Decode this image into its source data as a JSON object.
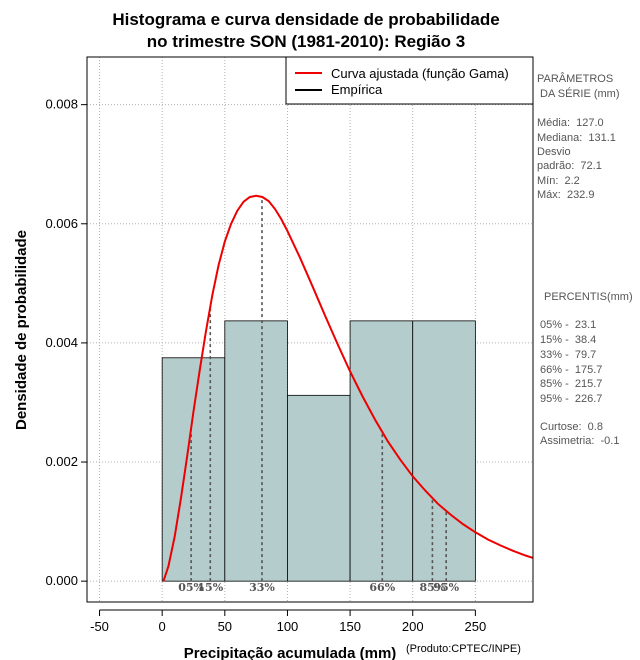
{
  "chart_data": {
    "type": "histogram",
    "title_lines": [
      "Histograma e curva densidade de probabilidade",
      "no trimestre SON (1981-2010): Região 3"
    ],
    "xlabel": "Precipitação acumulada (mm)",
    "ylabel": "Densidade de probabilidade",
    "xlim": [
      -60,
      296
    ],
    "ylim": [
      -0.00035,
      0.0088
    ],
    "x_ticks": [
      -50,
      0,
      50,
      100,
      150,
      200,
      250
    ],
    "y_ticks": [
      0.0,
      0.002,
      0.004,
      0.006,
      0.008
    ],
    "y_tick_labels": [
      "0.000",
      "0.002",
      "0.004",
      "0.006",
      "0.008"
    ],
    "grid": true,
    "bins": [
      {
        "start": 0,
        "end": 50,
        "density": 0.00375
      },
      {
        "start": 50,
        "end": 100,
        "density": 0.00437
      },
      {
        "start": 100,
        "end": 150,
        "density": 0.00312
      },
      {
        "start": 150,
        "end": 200,
        "density": 0.00437
      },
      {
        "start": 200,
        "end": 250,
        "density": 0.00437
      }
    ],
    "fitted_curve": {
      "name": "Curva ajustada (função Gama)",
      "color": "#ee0000",
      "points": [
        [
          1,
          0.0
        ],
        [
          5,
          0.00025
        ],
        [
          10,
          0.00075
        ],
        [
          15,
          0.0014
        ],
        [
          20,
          0.0021
        ],
        [
          25,
          0.00285
        ],
        [
          30,
          0.00355
        ],
        [
          35,
          0.0042
        ],
        [
          40,
          0.0048
        ],
        [
          45,
          0.0053
        ],
        [
          50,
          0.0057
        ],
        [
          55,
          0.006
        ],
        [
          60,
          0.00622
        ],
        [
          65,
          0.00637
        ],
        [
          70,
          0.00645
        ],
        [
          75,
          0.00647
        ],
        [
          80,
          0.00645
        ],
        [
          85,
          0.00638
        ],
        [
          90,
          0.00625
        ],
        [
          95,
          0.00608
        ],
        [
          100,
          0.00588
        ],
        [
          110,
          0.00543
        ],
        [
          120,
          0.00495
        ],
        [
          130,
          0.00446
        ],
        [
          140,
          0.00398
        ],
        [
          150,
          0.00352
        ],
        [
          160,
          0.0031
        ],
        [
          170,
          0.00271
        ],
        [
          180,
          0.00235
        ],
        [
          190,
          0.00204
        ],
        [
          200,
          0.00176
        ],
        [
          210,
          0.00152
        ],
        [
          220,
          0.0013
        ],
        [
          230,
          0.00112
        ],
        [
          240,
          0.00096
        ],
        [
          250,
          0.00082
        ],
        [
          260,
          0.0007
        ],
        [
          270,
          0.0006
        ],
        [
          280,
          0.00051
        ],
        [
          290,
          0.00043
        ],
        [
          296,
          0.00039
        ]
      ]
    },
    "empirical_series": {
      "name": "Empírica",
      "color": "#000000"
    },
    "percentile_lines": [
      {
        "label": "05%",
        "x": 23.1
      },
      {
        "label": "15%",
        "x": 38.4
      },
      {
        "label": "33%",
        "x": 79.7
      },
      {
        "label": "66%",
        "x": 175.7
      },
      {
        "label": "85%",
        "x": 215.7
      },
      {
        "label": "95%",
        "x": 226.7
      }
    ],
    "legend_position": "top-right",
    "colors": {
      "bars": "#b4cccc",
      "curve": "#ee0000",
      "grid": "#b0b0b0",
      "percentile_line": "#555555"
    }
  },
  "side_panel": {
    "params_heading": [
      "PARÂMETROS",
      " DA SÉRIE (mm)"
    ],
    "params": [
      "Média:  127.0",
      "Mediana:  131.1",
      "Desvio",
      "padrão:  72.1",
      "Mín:  2.2",
      "Máx:  232.9"
    ],
    "percentis_heading": "PERCENTIS(mm)",
    "percentis": [
      "05% -  23.1",
      "15% -  38.4",
      "33% -  79.7",
      "66% -  175.7",
      "85% -  215.7",
      "95% -  226.7"
    ],
    "stats": [
      "Curtose:  0.8",
      "Assimetria:  -0.1"
    ]
  },
  "credit": "(Produto:CPTEC/INPE)"
}
